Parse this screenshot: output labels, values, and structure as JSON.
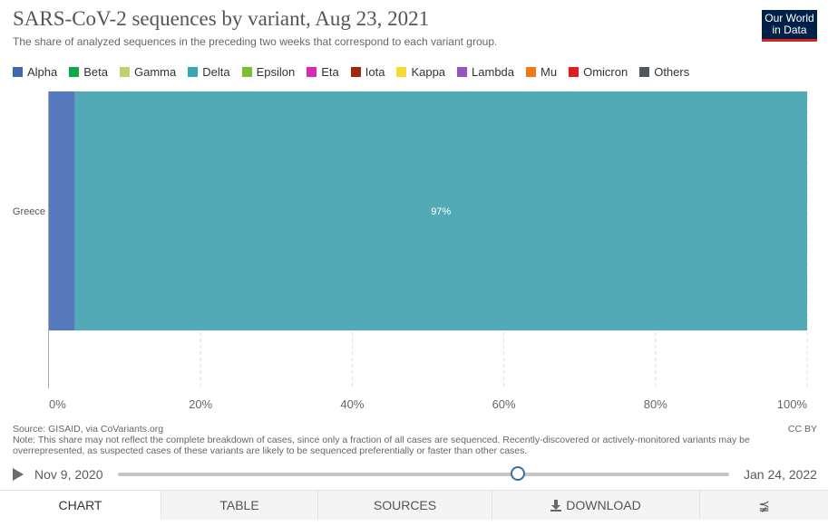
{
  "header": {
    "title": "SARS-CoV-2 sequences by variant, Aug 23, 2021",
    "subtitle": "The share of analyzed sequences in the preceding two weeks that correspond to each variant group.",
    "logo_line1": "Our World",
    "logo_line2": "in Data"
  },
  "legend": [
    {
      "label": "Alpha",
      "color": "#3e68b4"
    },
    {
      "label": "Beta",
      "color": "#10a64a"
    },
    {
      "label": "Gamma",
      "color": "#c1d06c"
    },
    {
      "label": "Delta",
      "color": "#38a7af"
    },
    {
      "label": "Epsilon",
      "color": "#7cbd34"
    },
    {
      "label": "Eta",
      "color": "#d72bb5"
    },
    {
      "label": "Iota",
      "color": "#9b2a0e"
    },
    {
      "label": "Kappa",
      "color": "#f2db35"
    },
    {
      "label": "Lambda",
      "color": "#9553c4"
    },
    {
      "label": "Mu",
      "color": "#ee7a17"
    },
    {
      "label": "Omicron",
      "color": "#e31c20"
    },
    {
      "label": "Others",
      "color": "#505760"
    }
  ],
  "chart_data": {
    "type": "bar",
    "orientation": "horizontal",
    "stacked": true,
    "categories": [
      "Greece"
    ],
    "series": [
      {
        "name": "Alpha",
        "values": [
          3.4
        ],
        "color": "#5779be"
      },
      {
        "name": "Delta",
        "values": [
          96.6
        ],
        "color": "#52aab6",
        "data_label": "97%"
      }
    ],
    "xlim": [
      0,
      100
    ],
    "xticks": [
      "0%",
      "20%",
      "40%",
      "60%",
      "80%",
      "100%"
    ],
    "xtick_values": [
      0,
      20,
      40,
      60,
      80,
      100
    ],
    "grid": true,
    "legend_position": "top"
  },
  "footer": {
    "source": "Source: GISAID, via CoVariants.org",
    "note": "Note: This share may not reflect the complete breakdown of cases, since only a fraction of all cases are sequenced. Recently-discovered or actively-monitored variants may be overrepresented, as suspected cases of these variants are likely to be sequenced preferentially or faster than other cases.",
    "license": "CC BY"
  },
  "timeline": {
    "start_label": "Nov 9, 2020",
    "end_label": "Jan 24, 2022",
    "position": 0.654
  },
  "tabs": [
    {
      "label": "CHART",
      "active": true
    },
    {
      "label": "TABLE",
      "active": false
    },
    {
      "label": "SOURCES",
      "active": false
    },
    {
      "label": "DOWNLOAD",
      "active": false
    }
  ]
}
